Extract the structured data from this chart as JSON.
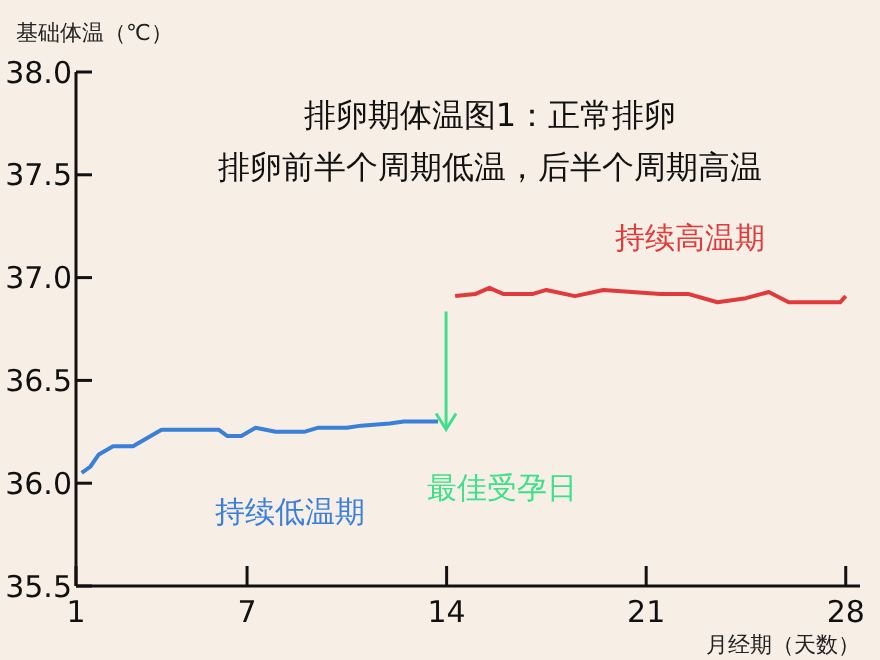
{
  "chart_data": {
    "type": "line",
    "title": "排卵期体温图1：正常排卵",
    "subtitle": "排卵前半个周期低温，后半个周期高温",
    "xlabel": "月经期（天数）",
    "ylabel": "基础体温（℃）",
    "xlim": [
      1,
      28.5
    ],
    "xticks": [
      1,
      7,
      14,
      21,
      28
    ],
    "ylim": [
      35.5,
      38
    ],
    "yticks": [
      {
        "value": 35.5,
        "label": "35.5"
      },
      {
        "value": 36,
        "label": "36.0"
      },
      {
        "value": 36.5,
        "label": "36.5"
      },
      {
        "value": 37,
        "label": "37.0"
      },
      {
        "value": 37.5,
        "label": "37.5"
      },
      {
        "value": 38,
        "label": "38.0"
      }
    ],
    "grid": false,
    "marker": "none",
    "line_style": "solid",
    "series": [
      {
        "name": "持续低温期",
        "color": "#3a7fd8",
        "x": [
          1.2,
          1.5,
          1.8,
          2.3,
          3,
          3.5,
          4,
          5,
          6,
          6.3,
          6.8,
          7.3,
          8,
          9,
          9.5,
          10.5,
          11,
          12,
          12.5,
          13.7
        ],
        "values": [
          36.05,
          36.08,
          36.14,
          36.18,
          36.18,
          36.22,
          36.26,
          36.26,
          36.26,
          36.23,
          36.23,
          36.27,
          36.25,
          36.25,
          36.27,
          36.27,
          36.28,
          36.29,
          36.3,
          36.3
        ]
      },
      {
        "name": "持续高温期",
        "color": "#e03a3a",
        "x": [
          14.3,
          15,
          15.5,
          16,
          17,
          17.5,
          18.5,
          19.5,
          20.5,
          21.5,
          22.5,
          23.5,
          24.5,
          25.3,
          26,
          26.5,
          27.8,
          28
        ],
        "values": [
          36.91,
          36.92,
          36.95,
          36.92,
          36.92,
          36.94,
          36.91,
          36.94,
          36.93,
          36.92,
          36.92,
          36.88,
          36.9,
          36.93,
          36.88,
          36.88,
          36.88,
          36.91
        ]
      }
    ],
    "annotations": [
      "最佳受孕日"
    ]
  }
}
